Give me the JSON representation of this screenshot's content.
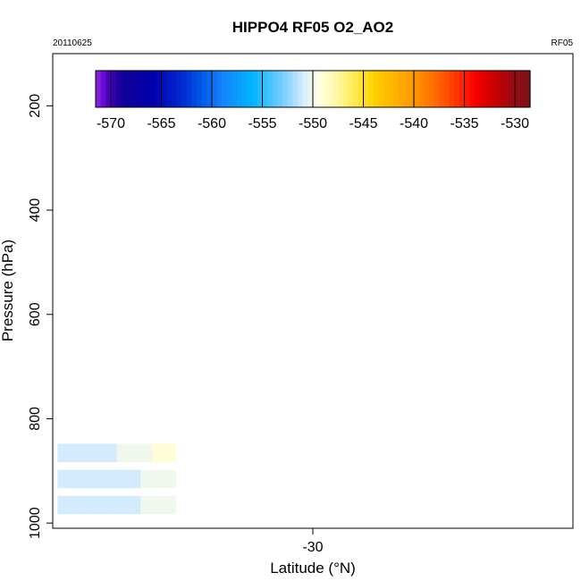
{
  "chart_data": {
    "type": "heatmap",
    "title": "HIPPO4 RF05 O2_AO2",
    "date_label": "20110625",
    "flight_label": "RF05",
    "xlabel": "Latitude (°N)",
    "ylabel": "Pressure (hPa)",
    "x_ticks": [
      -30
    ],
    "y_ticks": [
      200,
      400,
      600,
      800,
      1000
    ],
    "xlim": [
      -52,
      -8
    ],
    "ylim": [
      1010,
      100
    ],
    "colorbar": {
      "range": [
        -571.5,
        -528.5
      ],
      "ticks": [
        -570,
        -565,
        -560,
        -555,
        -550,
        -545,
        -540,
        -535,
        -530
      ]
    },
    "grid": false,
    "cells": [
      [
        -51.1,
        965,
        -551
      ],
      [
        -50.1,
        965,
        -551
      ],
      [
        -49.1,
        965,
        -551
      ],
      [
        -48.1,
        965,
        -551
      ],
      [
        -47.1,
        965,
        -551
      ],
      [
        -46.1,
        965,
        -551
      ],
      [
        -45.1,
        965,
        -551
      ],
      [
        -44.1,
        965,
        -550
      ],
      [
        -43.1,
        965,
        -550
      ],
      [
        -42.1,
        965,
        -550
      ],
      [
        -51.1,
        915,
        -551
      ],
      [
        -50.1,
        915,
        -551
      ],
      [
        -49.1,
        915,
        -551
      ],
      [
        -48.1,
        915,
        -551
      ],
      [
        -47.1,
        915,
        -551
      ],
      [
        -46.1,
        915,
        -551
      ],
      [
        -45.1,
        915,
        -551
      ],
      [
        -44.1,
        915,
        -550
      ],
      [
        -43.1,
        915,
        -550
      ],
      [
        -42.1,
        915,
        -550
      ],
      [
        -51.1,
        865,
        -551
      ],
      [
        -50.1,
        865,
        -551
      ],
      [
        -49.1,
        865,
        -551
      ],
      [
        -48.1,
        865,
        -551
      ],
      [
        -47.1,
        865,
        -551
      ],
      [
        -46.1,
        865,
        -550
      ],
      [
        -45.1,
        865,
        -550
      ],
      [
        -44.1,
        865,
        -550
      ],
      [
        -43.1,
        865,
        -549
      ],
      [
        -42.1,
        865,
        -549
      ]
    ]
  }
}
